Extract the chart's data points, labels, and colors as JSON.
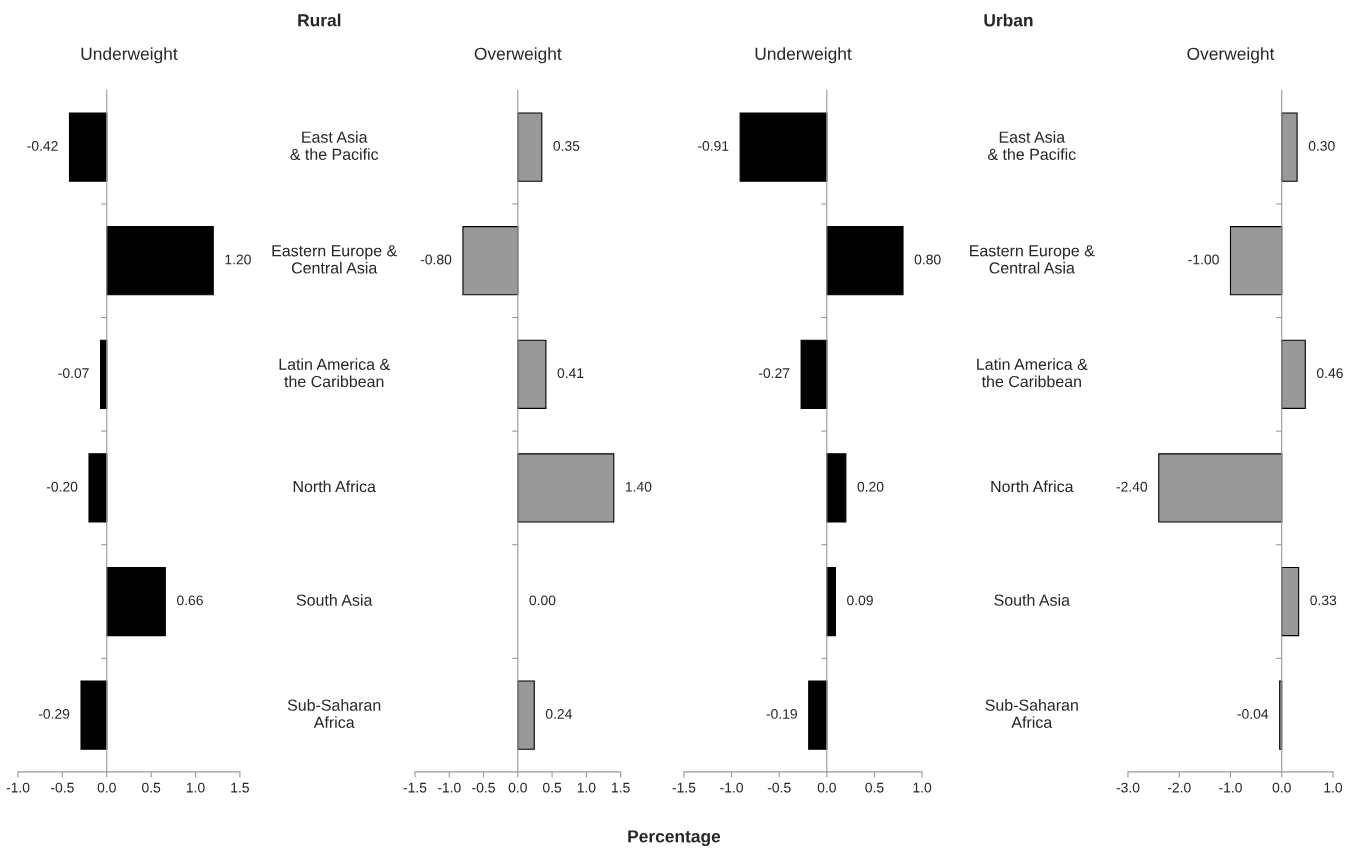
{
  "chart_data": [
    {
      "type": "bar",
      "orientation": "horizontal",
      "title": "Underweight",
      "annotations": [
        "Rural"
      ],
      "categories": [
        null,
        null,
        null,
        null,
        null,
        null
      ],
      "values": [
        -0.42,
        1.2,
        -0.07,
        -0.2,
        0.66,
        -0.29
      ],
      "value_labels": [
        "-0.42",
        "1.20",
        "-0.07",
        "-0.20",
        "0.66",
        "-0.29"
      ],
      "color": "#000000",
      "xlim": [
        -1.0,
        1.5
      ],
      "xticks": [
        {
          "value": -1.0,
          "label": "-1.0"
        },
        {
          "value": -0.5,
          "label": "-0.5"
        },
        {
          "value": 0.0,
          "label": "0.0"
        },
        {
          "value": 0.5,
          "label": "0.5"
        },
        {
          "value": 1.0,
          "label": "1.0"
        },
        {
          "value": 1.5,
          "label": "1.5"
        }
      ],
      "tick_labels": "x",
      "legend": false
    },
    {
      "type": "bar",
      "orientation": "horizontal",
      "title": "Overweight",
      "categories": [
        "East Asia\n& the Pacific",
        "Eastern Europe &\nCentral Asia",
        "Latin America &\nthe Caribbean",
        "North Africa",
        "South Asia",
        "Sub-Saharan\nAfrica"
      ],
      "values": [
        0.35,
        -0.8,
        0.41,
        1.4,
        0.0,
        0.24
      ],
      "value_labels": [
        "0.35",
        "-0.80",
        "0.41",
        "1.40",
        "0.00",
        "0.24"
      ],
      "color": "#999999",
      "xlim": [
        -1.5,
        1.5
      ],
      "xticks": [
        {
          "value": -1.5,
          "label": "-1.5"
        },
        {
          "value": -1.0,
          "label": "-1.0"
        },
        {
          "value": -0.5,
          "label": "-0.5"
        },
        {
          "value": 0.0,
          "label": "0.0"
        },
        {
          "value": 0.5,
          "label": "0.5"
        },
        {
          "value": 1.0,
          "label": "1.0"
        },
        {
          "value": 1.5,
          "label": "1.5"
        }
      ],
      "legend": false
    },
    {
      "type": "bar",
      "orientation": "horizontal",
      "title": "Underweight",
      "annotations": [
        "Urban"
      ],
      "xlabel": "Percentage",
      "categories": [
        null,
        null,
        null,
        null,
        null,
        null
      ],
      "values": [
        -0.91,
        0.8,
        -0.27,
        0.2,
        0.09,
        -0.19
      ],
      "value_labels": [
        "-0.91",
        "0.80",
        "-0.27",
        "0.20",
        "0.09",
        "-0.19"
      ],
      "color": "#000000",
      "xlim": [
        -1.5,
        1.0
      ],
      "xticks": [
        {
          "value": -1.5,
          "label": "-1.5"
        },
        {
          "value": -1.0,
          "label": "-1.0"
        },
        {
          "value": -0.5,
          "label": "-0.5"
        },
        {
          "value": 0.0,
          "label": "0.0"
        },
        {
          "value": 0.5,
          "label": "0.5"
        },
        {
          "value": 1.0,
          "label": "1.0"
        }
      ],
      "tick_labels": "x",
      "legend": false
    },
    {
      "type": "bar",
      "orientation": "horizontal",
      "title": "Overweight",
      "categories": [
        "East Asia\n& the Pacific",
        "Eastern Europe &\nCentral Asia",
        "Latin America &\nthe Caribbean",
        "North Africa",
        "South Asia",
        "Sub-Saharan\nAfrica"
      ],
      "values": [
        0.3,
        -1.0,
        0.46,
        -2.4,
        0.33,
        -0.04
      ],
      "value_labels": [
        "0.30",
        "-1.00",
        "0.46",
        "-2.40",
        "0.33",
        "-0.04"
      ],
      "color": "#999999",
      "xlim": [
        -3.0,
        1.0
      ],
      "xticks": [
        {
          "value": -3.0,
          "label": "-3.0"
        },
        {
          "value": -2.0,
          "label": "-2.0"
        },
        {
          "value": -1.0,
          "label": "-1.0"
        },
        {
          "value": 0.0,
          "label": "0.0"
        },
        {
          "value": 1.0,
          "label": "1.0"
        }
      ],
      "legend": false
    }
  ]
}
